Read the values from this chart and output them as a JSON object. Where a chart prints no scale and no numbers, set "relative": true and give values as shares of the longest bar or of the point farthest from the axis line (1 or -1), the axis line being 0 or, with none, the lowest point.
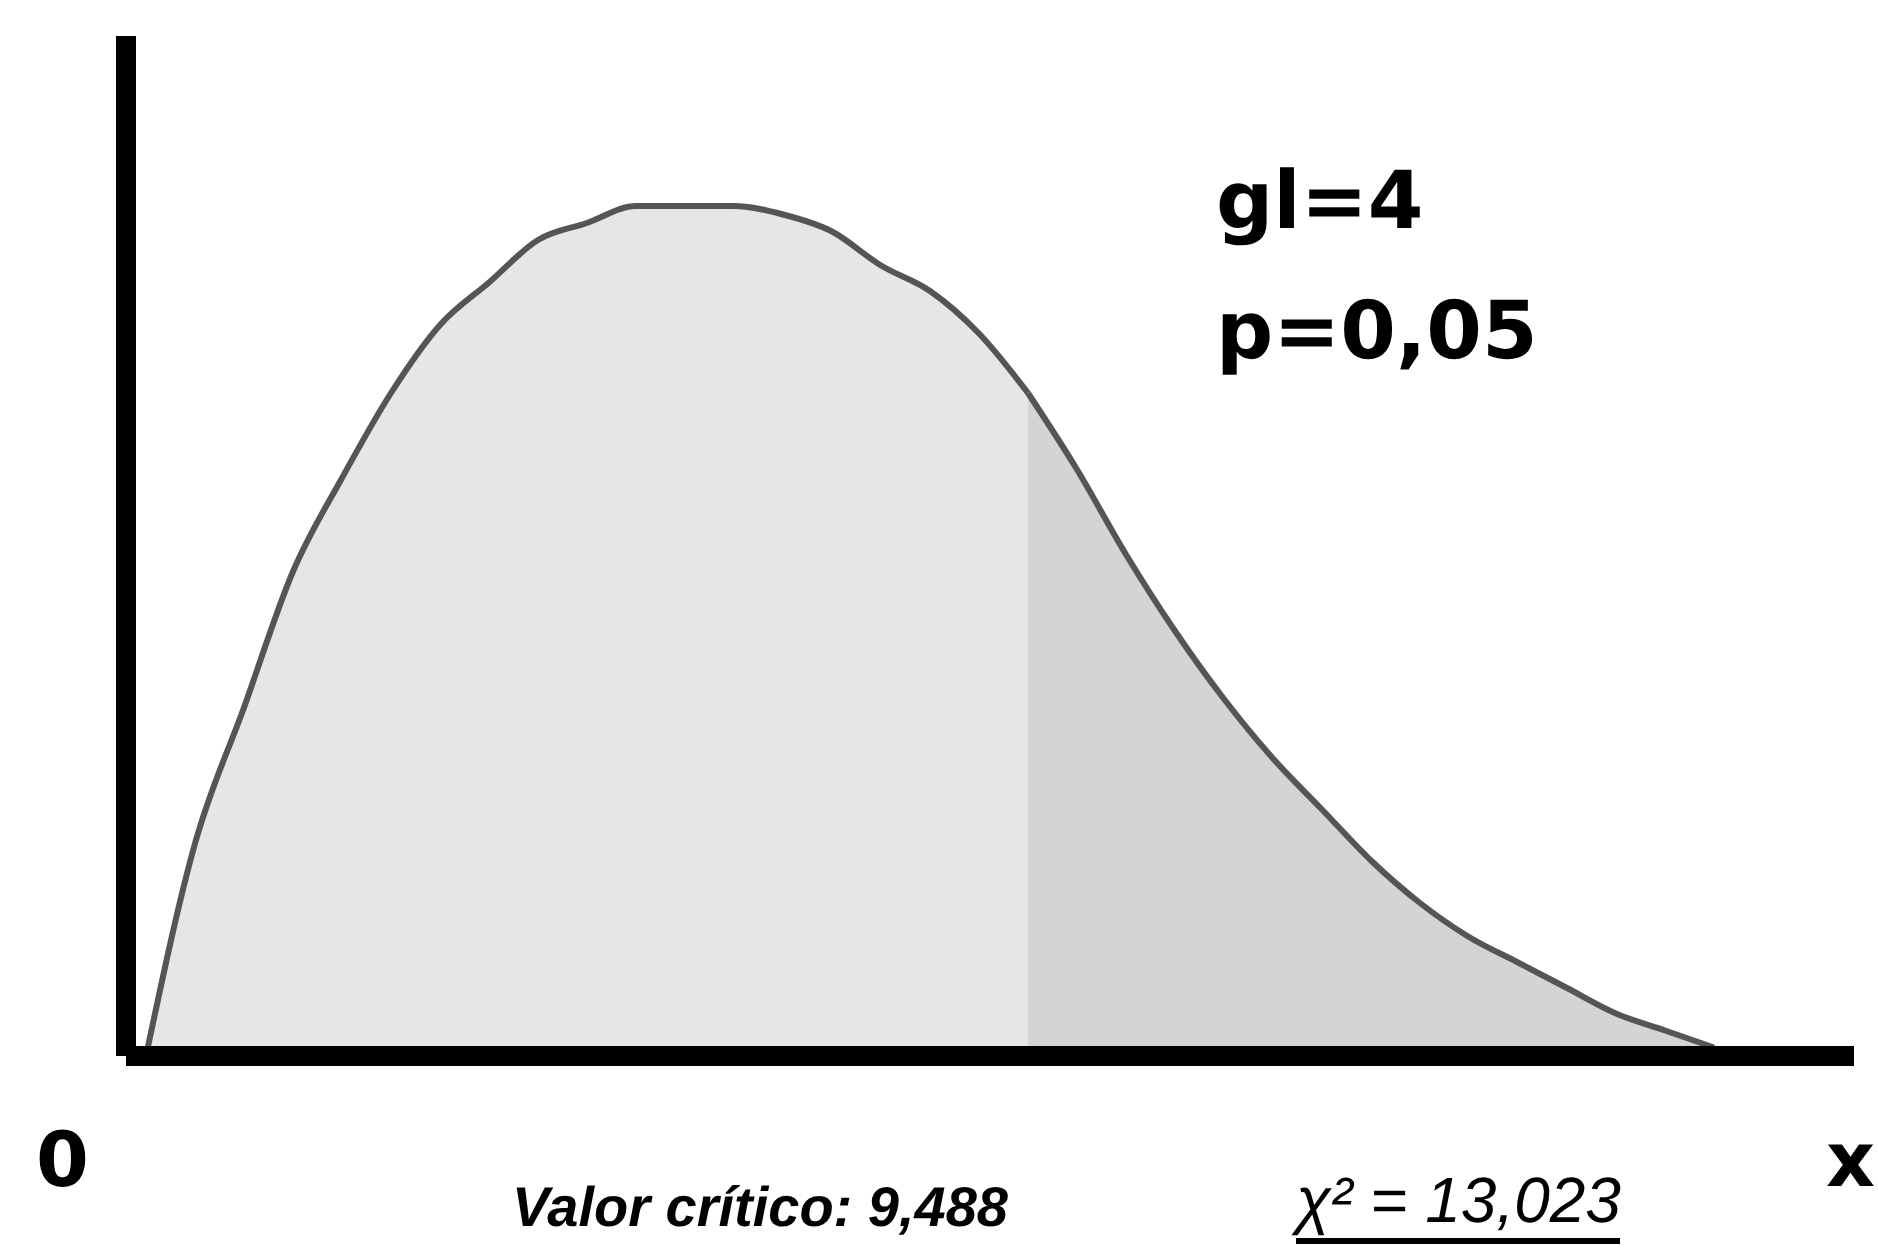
{
  "chart_data": {
    "type": "area",
    "relative": true,
    "xlabel": "x",
    "categories": [
      null,
      null,
      null,
      null,
      null,
      null,
      null,
      null,
      null,
      null,
      null,
      null,
      null,
      null,
      null,
      null,
      null,
      null,
      null,
      null,
      null,
      null,
      null,
      null,
      null,
      null,
      null,
      null,
      null,
      null,
      null,
      null,
      null
    ],
    "series": [
      {
        "color": "#e6e6e6",
        "values": [
          0,
          0.25,
          0.41,
          0.57,
          0.68,
          0.78,
          0.86,
          0.91,
          0.96,
          0.98,
          1,
          1,
          1,
          0.99,
          0.97,
          0.93,
          0.9,
          0.85,
          0.78,
          null,
          null,
          null,
          null,
          null,
          null,
          null,
          null,
          null,
          null,
          null,
          null,
          null,
          null
        ]
      },
      {
        "color": "#d4d4d4",
        "values": [
          null,
          null,
          null,
          null,
          null,
          null,
          null,
          null,
          null,
          null,
          null,
          null,
          null,
          null,
          null,
          null,
          null,
          null,
          0.78,
          0.69,
          0.59,
          0.5,
          0.42,
          0.35,
          0.29,
          0.23,
          0.18,
          0.14,
          0.11,
          0.08,
          0.05,
          0.03,
          0.01
        ]
      }
    ],
    "annotations": [
      "gl=4",
      "p=0,05",
      "0",
      "Valor crítico: 9,488",
      "χ² = 13,023"
    ],
    "grid": false,
    "legend": false
  }
}
